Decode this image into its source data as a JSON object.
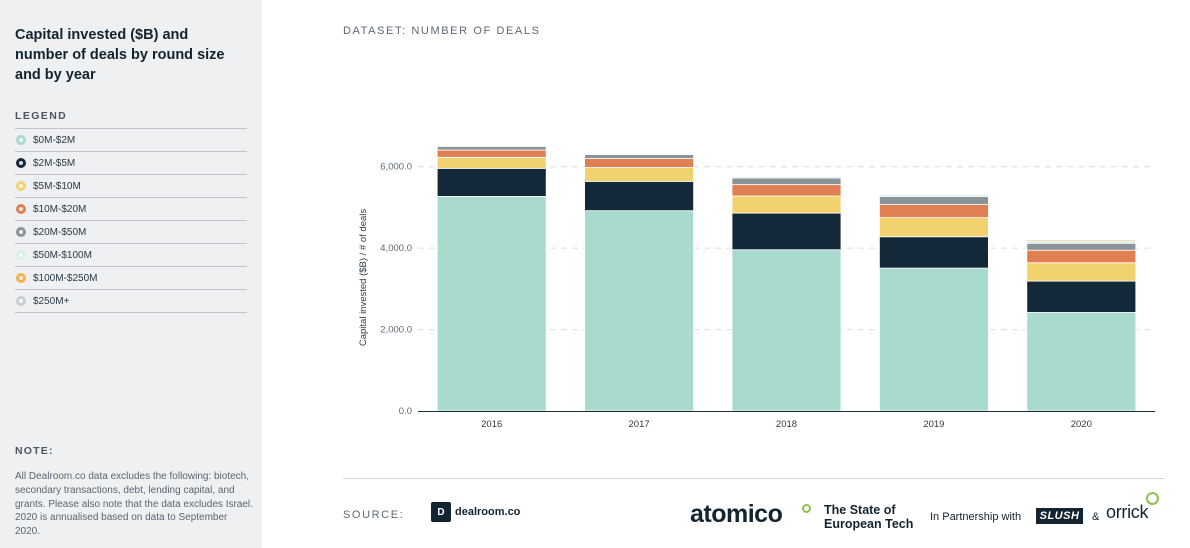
{
  "sidebar": {
    "title": "Capital invested ($B) and number of deals by round size and by year",
    "legend_heading": "LEGEND",
    "legend": [
      {
        "label": "$0M-$2M",
        "color": "#a8dace"
      },
      {
        "label": "$2M-$5M",
        "color": "#13293a"
      },
      {
        "label": "$5M-$10M",
        "color": "#f2d26e"
      },
      {
        "label": "$10M-$20M",
        "color": "#e07f52"
      },
      {
        "label": "$20M-$50M",
        "color": "#8a9398"
      },
      {
        "label": "$50M-$100M",
        "color": "#d7f0ea"
      },
      {
        "label": "$100M-$250M",
        "color": "#f6b04c"
      },
      {
        "label": "$250M+",
        "color": "#c8cdd0"
      }
    ],
    "note_heading": "NOTE:",
    "note_text": "All Dealroom.co data excludes the following: biotech, secondary transactions, debt, lending capital, and grants. Please also note that the data excludes Israel. 2020 is annualised based on data to September 2020."
  },
  "main": {
    "dataset_label": "DATASET: NUMBER OF DEALS",
    "source_label": "SOURCE:",
    "dealroom_icon": "D",
    "dealroom_text": "dealroom.co",
    "atomico_text": "atomico",
    "sote_line1": "The State of",
    "sote_line2": "European Tech",
    "partnership_text": "In Partnership with",
    "slush_text": "SLUSH",
    "amp_text": "&",
    "orrick_text": "orrick"
  },
  "chart_data": {
    "type": "bar",
    "stacked": true,
    "categories": [
      "2016",
      "2017",
      "2018",
      "2019",
      "2020"
    ],
    "ylabel": "Capital invested ($B) / # of deals",
    "ylim": [
      0,
      6000
    ],
    "yticks": [
      0,
      2000,
      4000,
      6000
    ],
    "ytick_labels": [
      "0.0",
      "2,000.0",
      "4,000.0",
      "6,000.0"
    ],
    "grid": true,
    "series": [
      {
        "name": "$0M-$2M",
        "color": "#a8dace",
        "values": [
          5270,
          4920,
          3960,
          3510,
          2420
        ]
      },
      {
        "name": "$2M-$5M",
        "color": "#13293a",
        "values": [
          690,
          720,
          900,
          770,
          770
        ]
      },
      {
        "name": "$5M-$10M",
        "color": "#f2d26e",
        "values": [
          270,
          340,
          420,
          470,
          450
        ]
      },
      {
        "name": "$10M-$20M",
        "color": "#e07f52",
        "values": [
          180,
          220,
          280,
          320,
          310
        ]
      },
      {
        "name": "$20M-$50M",
        "color": "#8a9398",
        "values": [
          90,
          100,
          160,
          200,
          170
        ]
      },
      {
        "name": "$50M-$100M",
        "color": "#d7f0ea",
        "values": [
          20,
          20,
          40,
          50,
          60
        ]
      },
      {
        "name": "$100M-$250M",
        "color": "#f6b04c",
        "values": [
          10,
          10,
          20,
          20,
          30
        ]
      },
      {
        "name": "$250M+",
        "color": "#c8cdd0",
        "values": [
          5,
          5,
          10,
          15,
          20
        ]
      }
    ]
  }
}
